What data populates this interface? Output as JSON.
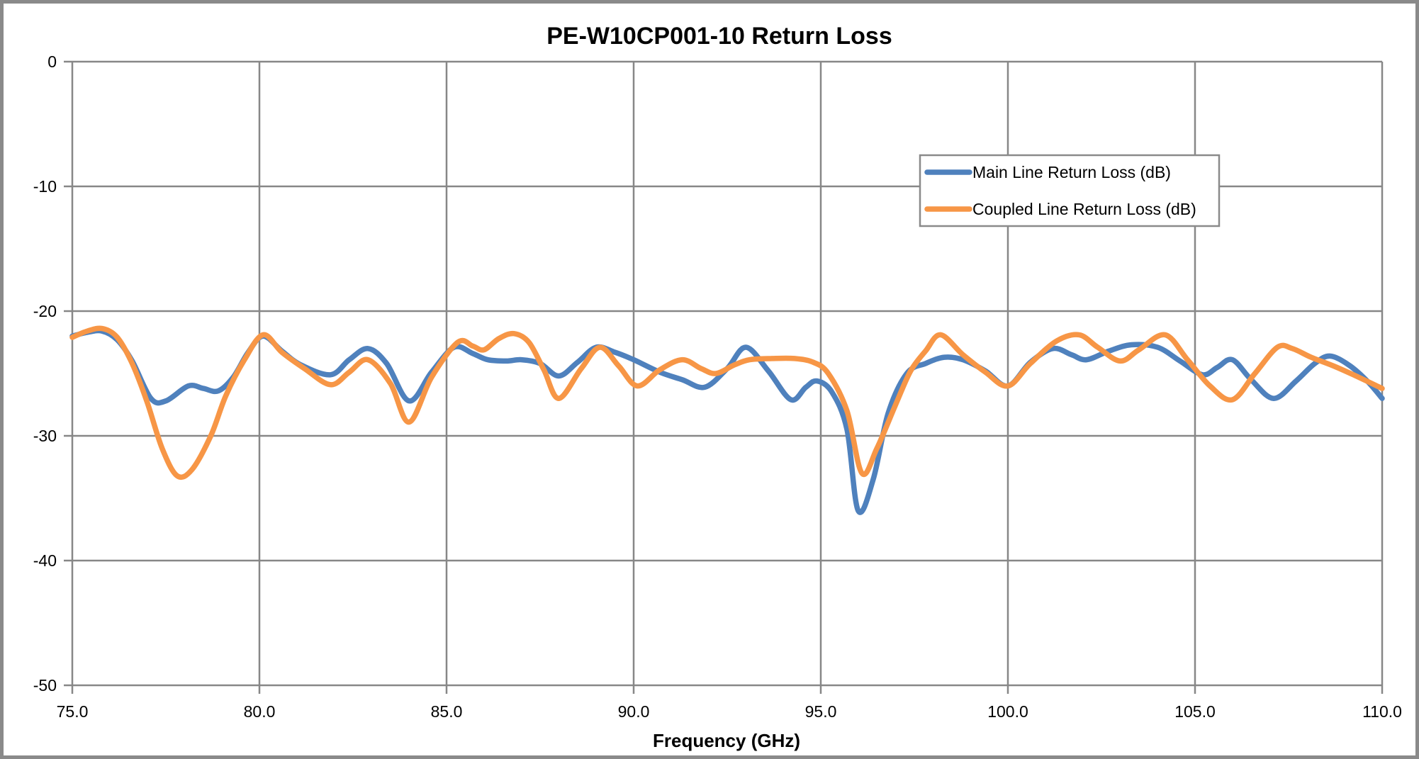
{
  "frame": {
    "background": "#FFFFFF",
    "border_color": "#8A8A8A",
    "gridline_color": "#878787",
    "axis_color": "#878787",
    "text_color": "#000000"
  },
  "chart_data": {
    "type": "line",
    "title": "PE-W10CP001-10 Return Loss",
    "xlabel": "Frequency (GHz)",
    "ylabel": "",
    "xlim": [
      75.0,
      110.0
    ],
    "ylim": [
      -50,
      0
    ],
    "grid": true,
    "legend_position": "top-right-inside",
    "x_ticks": [
      {
        "value": 75,
        "label": "75.0"
      },
      {
        "value": 80,
        "label": "80.0"
      },
      {
        "value": 85,
        "label": "85.0"
      },
      {
        "value": 90,
        "label": "90.0"
      },
      {
        "value": 95,
        "label": "95.0"
      },
      {
        "value": 100,
        "label": "100.0"
      },
      {
        "value": 105,
        "label": "105.0"
      },
      {
        "value": 110,
        "label": "110.0"
      }
    ],
    "y_ticks": [
      {
        "value": 0,
        "label": "0"
      },
      {
        "value": -10,
        "label": "-10"
      },
      {
        "value": -20,
        "label": "-20"
      },
      {
        "value": -30,
        "label": "-30"
      },
      {
        "value": -40,
        "label": "-40"
      },
      {
        "value": -50,
        "label": "-50"
      }
    ],
    "series": [
      {
        "name": "Main Line Return Loss (dB)",
        "color": "#4F81BD",
        "points": [
          [
            75.0,
            -22.0
          ],
          [
            75.4,
            -21.7
          ],
          [
            75.8,
            -21.6
          ],
          [
            76.2,
            -22.3
          ],
          [
            76.6,
            -24.0
          ],
          [
            77.1,
            -27.0
          ],
          [
            77.5,
            -27.2
          ],
          [
            78.1,
            -26.0
          ],
          [
            78.5,
            -26.2
          ],
          [
            78.9,
            -26.4
          ],
          [
            79.3,
            -25.3
          ],
          [
            79.7,
            -23.3
          ],
          [
            80.1,
            -22.0
          ],
          [
            80.6,
            -23.2
          ],
          [
            81.1,
            -24.3
          ],
          [
            81.9,
            -25.1
          ],
          [
            82.4,
            -23.9
          ],
          [
            82.9,
            -23.0
          ],
          [
            83.4,
            -24.2
          ],
          [
            84.0,
            -27.2
          ],
          [
            84.6,
            -24.9
          ],
          [
            85.2,
            -22.9
          ],
          [
            85.7,
            -23.4
          ],
          [
            86.1,
            -23.9
          ],
          [
            86.6,
            -24.0
          ],
          [
            87.0,
            -23.9
          ],
          [
            87.5,
            -24.2
          ],
          [
            88.0,
            -25.2
          ],
          [
            88.5,
            -24.1
          ],
          [
            89.0,
            -22.9
          ],
          [
            89.5,
            -23.3
          ],
          [
            90.0,
            -23.9
          ],
          [
            90.7,
            -24.9
          ],
          [
            91.3,
            -25.5
          ],
          [
            91.9,
            -26.1
          ],
          [
            92.5,
            -24.6
          ],
          [
            93.0,
            -22.9
          ],
          [
            93.6,
            -24.8
          ],
          [
            94.2,
            -27.1
          ],
          [
            94.6,
            -26.1
          ],
          [
            94.9,
            -25.6
          ],
          [
            95.3,
            -26.5
          ],
          [
            95.7,
            -29.5
          ],
          [
            96.0,
            -36.0
          ],
          [
            96.4,
            -33.5
          ],
          [
            96.8,
            -28.2
          ],
          [
            97.3,
            -25.0
          ],
          [
            97.8,
            -24.2
          ],
          [
            98.3,
            -23.7
          ],
          [
            98.8,
            -23.9
          ],
          [
            99.4,
            -24.8
          ],
          [
            100.0,
            -26.0
          ],
          [
            100.6,
            -24.1
          ],
          [
            101.2,
            -23.0
          ],
          [
            101.7,
            -23.5
          ],
          [
            102.1,
            -23.9
          ],
          [
            102.7,
            -23.2
          ],
          [
            103.3,
            -22.7
          ],
          [
            104.0,
            -22.9
          ],
          [
            104.6,
            -24.0
          ],
          [
            105.2,
            -25.1
          ],
          [
            105.6,
            -24.5
          ],
          [
            106.0,
            -23.9
          ],
          [
            106.5,
            -25.5
          ],
          [
            107.1,
            -27.0
          ],
          [
            107.7,
            -25.6
          ],
          [
            108.2,
            -24.2
          ],
          [
            108.6,
            -23.6
          ],
          [
            109.1,
            -24.3
          ],
          [
            109.6,
            -25.6
          ],
          [
            110.0,
            -27.0
          ]
        ]
      },
      {
        "name": "Coupled Line Return Loss (dB)",
        "color": "#F79646",
        "points": [
          [
            75.0,
            -22.1
          ],
          [
            75.4,
            -21.6
          ],
          [
            75.8,
            -21.4
          ],
          [
            76.2,
            -22.1
          ],
          [
            76.6,
            -24.2
          ],
          [
            77.0,
            -27.3
          ],
          [
            77.4,
            -31.0
          ],
          [
            77.8,
            -33.2
          ],
          [
            78.2,
            -32.7
          ],
          [
            78.7,
            -30.0
          ],
          [
            79.1,
            -26.8
          ],
          [
            79.6,
            -23.9
          ],
          [
            80.1,
            -21.9
          ],
          [
            80.6,
            -23.3
          ],
          [
            81.2,
            -24.6
          ],
          [
            81.9,
            -25.9
          ],
          [
            82.4,
            -24.9
          ],
          [
            82.9,
            -23.9
          ],
          [
            83.5,
            -25.8
          ],
          [
            84.0,
            -28.9
          ],
          [
            84.6,
            -25.3
          ],
          [
            85.3,
            -22.5
          ],
          [
            85.7,
            -22.8
          ],
          [
            86.0,
            -23.1
          ],
          [
            86.4,
            -22.2
          ],
          [
            86.8,
            -21.8
          ],
          [
            87.2,
            -22.5
          ],
          [
            87.6,
            -24.7
          ],
          [
            88.0,
            -27.0
          ],
          [
            88.6,
            -24.6
          ],
          [
            89.1,
            -22.9
          ],
          [
            89.6,
            -24.4
          ],
          [
            90.1,
            -26.0
          ],
          [
            90.7,
            -24.7
          ],
          [
            91.3,
            -23.9
          ],
          [
            91.8,
            -24.6
          ],
          [
            92.2,
            -25.0
          ],
          [
            92.7,
            -24.3
          ],
          [
            93.1,
            -23.9
          ],
          [
            93.7,
            -23.8
          ],
          [
            94.3,
            -23.8
          ],
          [
            94.8,
            -24.1
          ],
          [
            95.2,
            -25.0
          ],
          [
            95.7,
            -28.0
          ],
          [
            96.1,
            -33.0
          ],
          [
            96.5,
            -31.0
          ],
          [
            97.0,
            -27.5
          ],
          [
            97.4,
            -24.8
          ],
          [
            97.8,
            -23.2
          ],
          [
            98.2,
            -21.9
          ],
          [
            98.8,
            -23.5
          ],
          [
            99.4,
            -24.9
          ],
          [
            100.0,
            -26.0
          ],
          [
            100.6,
            -24.2
          ],
          [
            101.3,
            -22.4
          ],
          [
            101.9,
            -21.9
          ],
          [
            102.4,
            -22.9
          ],
          [
            103.0,
            -24.0
          ],
          [
            103.5,
            -23.1
          ],
          [
            104.2,
            -21.9
          ],
          [
            104.8,
            -23.9
          ],
          [
            105.4,
            -26.0
          ],
          [
            106.0,
            -27.1
          ],
          [
            106.6,
            -25.0
          ],
          [
            107.2,
            -22.9
          ],
          [
            107.6,
            -23.0
          ],
          [
            108.1,
            -23.7
          ],
          [
            108.7,
            -24.4
          ],
          [
            109.3,
            -25.2
          ],
          [
            110.0,
            -26.2
          ]
        ]
      }
    ]
  }
}
